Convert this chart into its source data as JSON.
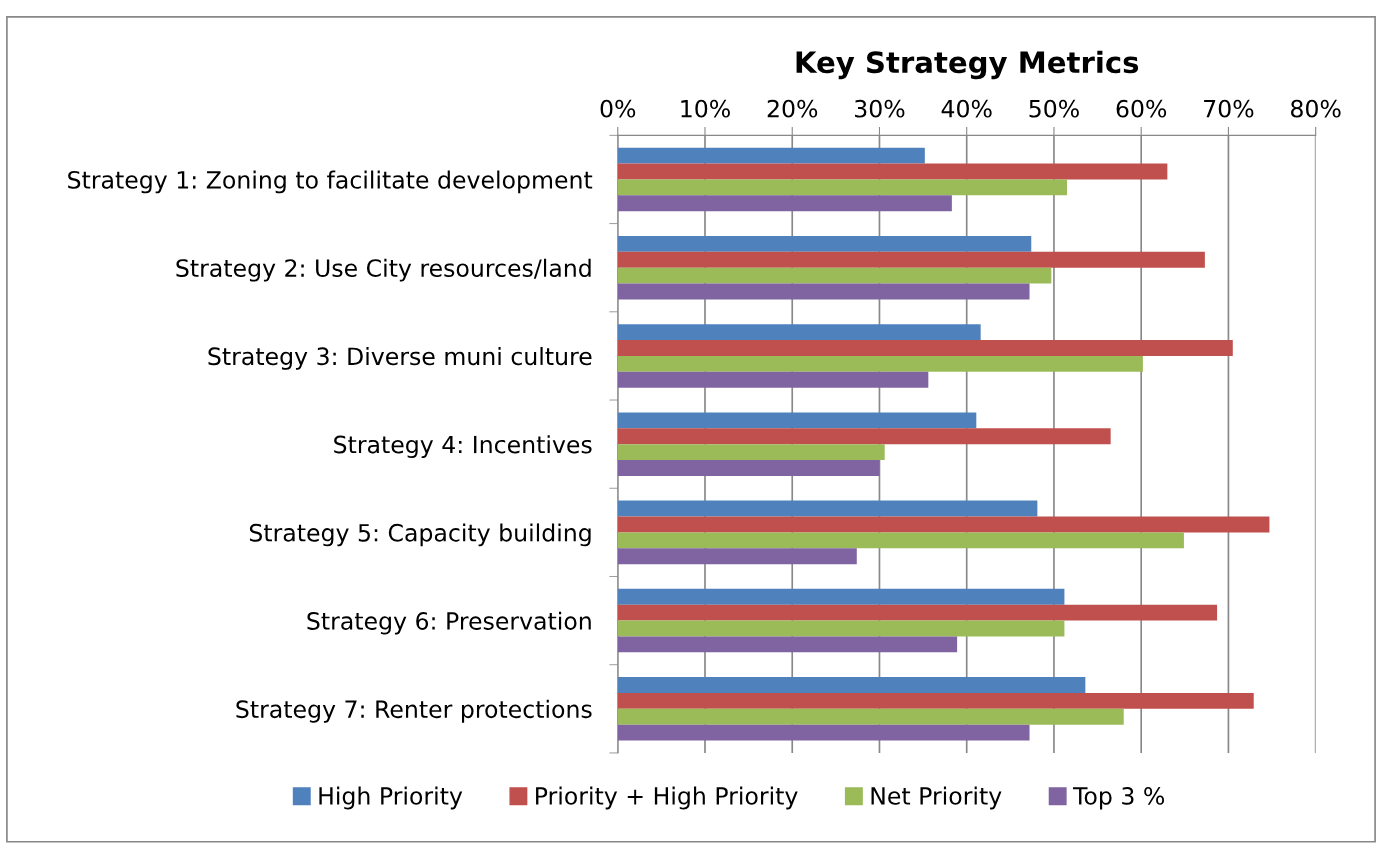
{
  "chart_data": {
    "type": "bar",
    "orientation": "horizontal",
    "title": "Key Strategy Metrics",
    "categories": [
      "Strategy 1: Zoning to facilitate development",
      "Strategy 2: Use City resources/land",
      "Strategy 3: Diverse muni culture",
      "Strategy 4: Incentives",
      "Strategy 5: Capacity building",
      "Strategy 6: Preservation",
      "Strategy 7: Renter protections"
    ],
    "series": [
      {
        "name": "High Priority",
        "color": "#4f81bd",
        "values": [
          35.2,
          47.4,
          41.6,
          41.1,
          48.1,
          51.2,
          53.6
        ]
      },
      {
        "name": "Priority + High Priority",
        "color": "#c0504d",
        "values": [
          63.0,
          67.3,
          70.5,
          56.5,
          74.7,
          68.7,
          72.9
        ]
      },
      {
        "name": "Net Priority",
        "color": "#9bbb59",
        "values": [
          51.5,
          49.7,
          60.2,
          30.6,
          64.9,
          51.2,
          58.0
        ]
      },
      {
        "name": "Top 3 %",
        "color": "#8064a2",
        "values": [
          38.3,
          47.2,
          35.6,
          30.0,
          27.4,
          38.9,
          47.2
        ]
      }
    ],
    "xlim": [
      0,
      80
    ],
    "xticks": [
      {
        "value": 0,
        "label": "0%"
      },
      {
        "value": 10,
        "label": "10%"
      },
      {
        "value": 20,
        "label": "20%"
      },
      {
        "value": 30,
        "label": "30%"
      },
      {
        "value": 40,
        "label": "40%"
      },
      {
        "value": 50,
        "label": "50%"
      },
      {
        "value": 60,
        "label": "60%"
      },
      {
        "value": 70,
        "label": "70%"
      },
      {
        "value": 80,
        "label": "80%"
      }
    ],
    "grid": "x",
    "legend": "bottom"
  }
}
